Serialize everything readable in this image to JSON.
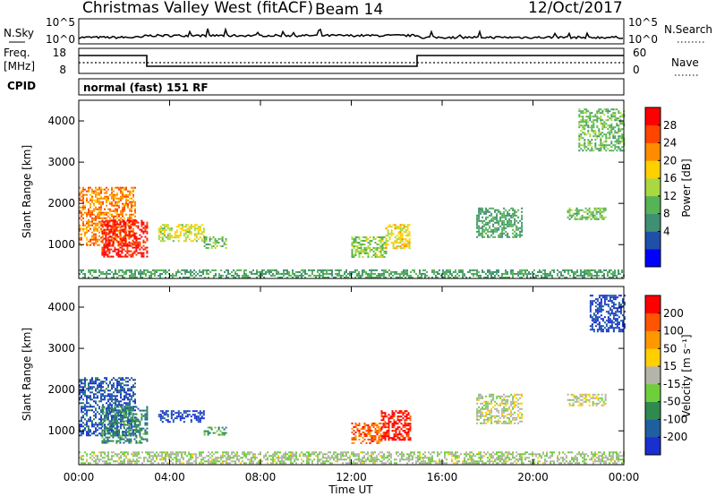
{
  "header": {
    "radar": "Christmas Valley West (fitACF)",
    "beam": "Beam 14",
    "date": "12/Oct/2017"
  },
  "noise_panel": {
    "left_label": "N.Sky",
    "right_label": "N.Search",
    "left_ticks": [
      "10^5",
      "10^0"
    ],
    "right_ticks": [
      "10^5",
      "10^0"
    ]
  },
  "freq_panel": {
    "left_label_1": "Freq.",
    "left_label_2": "[MHz]",
    "right_label": "Nave",
    "left_ticks": [
      "18",
      "8"
    ],
    "right_ticks": [
      "60",
      "0"
    ]
  },
  "cpid": {
    "label": "CPID",
    "text": "normal (fast) 151 RF"
  },
  "colors": {
    "power_scale": [
      "#0000ff",
      "#1f4fa8",
      "#3f8f72",
      "#56b356",
      "#a9d840",
      "#ffd000",
      "#ff8c00",
      "#ff4500",
      "#ff0000"
    ],
    "velocity_scale": [
      "#1a2fd0",
      "#1f5fa0",
      "#2e8a4e",
      "#6fce3c",
      "#b4b4aa",
      "#ffcf00",
      "#ff9800",
      "#ff5500",
      "#ff0000"
    ],
    "line": "#000000"
  },
  "chart_data": [
    {
      "type": "heatmap",
      "name": "power",
      "ylabel": "Slant Range [km]",
      "yticks": [
        1000,
        2000,
        3000,
        4000
      ],
      "ylim": [
        180,
        4500
      ],
      "colorbar_label": "Power [dB]",
      "colorbar_ticks": [
        "28",
        "24",
        "20",
        "16",
        "12",
        "8",
        "4"
      ],
      "clim": [
        0,
        30
      ],
      "regions": [
        {
          "t": [
            0.0,
            2.5
          ],
          "r": [
            1000,
            2400
          ],
          "level": 22
        },
        {
          "t": [
            1.0,
            3.0
          ],
          "r": [
            700,
            1600
          ],
          "level": 28
        },
        {
          "t": [
            3.5,
            5.5
          ],
          "r": [
            1100,
            1500
          ],
          "level": 16
        },
        {
          "t": [
            5.5,
            6.5
          ],
          "r": [
            900,
            1200
          ],
          "level": 12
        },
        {
          "t": [
            12.0,
            13.5
          ],
          "r": [
            700,
            1200
          ],
          "level": 14
        },
        {
          "t": [
            13.5,
            14.6
          ],
          "r": [
            900,
            1500
          ],
          "level": 18
        },
        {
          "t": [
            17.5,
            19.5
          ],
          "r": [
            1200,
            1900
          ],
          "level": 10
        },
        {
          "t": [
            21.5,
            23.2
          ],
          "r": [
            1600,
            1900
          ],
          "level": 12
        },
        {
          "t": [
            22.0,
            24.0
          ],
          "r": [
            3300,
            4300
          ],
          "level": 12
        },
        {
          "t": [
            0.0,
            24.0
          ],
          "r": [
            200,
            400
          ],
          "level": 10
        }
      ]
    },
    {
      "type": "heatmap",
      "name": "velocity",
      "ylabel": "Slant Range [km]",
      "yticks": [
        1000,
        2000,
        3000,
        4000
      ],
      "ylim": [
        180,
        4500
      ],
      "xlabel": "Time UT",
      "xticks": [
        "00:00",
        "04:00",
        "08:00",
        "12:00",
        "16:00",
        "20:00",
        "00:00"
      ],
      "xlim": [
        0,
        24
      ],
      "colorbar_label": "Velocity [m s⁻¹]",
      "colorbar_ticks": [
        "200",
        "100",
        "50",
        "15",
        "-15",
        "-50",
        "-100",
        "-200"
      ],
      "clim": [
        -250,
        250
      ],
      "regions": [
        {
          "t": [
            0.0,
            2.5
          ],
          "r": [
            900,
            2300
          ],
          "level": -180
        },
        {
          "t": [
            1.0,
            3.0
          ],
          "r": [
            700,
            1600
          ],
          "level": -120
        },
        {
          "t": [
            3.5,
            5.5
          ],
          "r": [
            1200,
            1500
          ],
          "level": -200
        },
        {
          "t": [
            5.5,
            6.5
          ],
          "r": [
            900,
            1100
          ],
          "level": -90
        },
        {
          "t": [
            12.0,
            13.3
          ],
          "r": [
            700,
            1200
          ],
          "level": 150
        },
        {
          "t": [
            13.3,
            14.6
          ],
          "r": [
            800,
            1500
          ],
          "level": 220
        },
        {
          "t": [
            17.5,
            19.5
          ],
          "r": [
            1200,
            1900
          ],
          "level": 0
        },
        {
          "t": [
            21.5,
            23.2
          ],
          "r": [
            1600,
            1900
          ],
          "level": 0
        },
        {
          "t": [
            22.5,
            24.0
          ],
          "r": [
            3400,
            4300
          ],
          "level": -200
        },
        {
          "t": [
            0.0,
            24.0
          ],
          "r": [
            200,
            500
          ],
          "level": -20
        }
      ]
    }
  ]
}
